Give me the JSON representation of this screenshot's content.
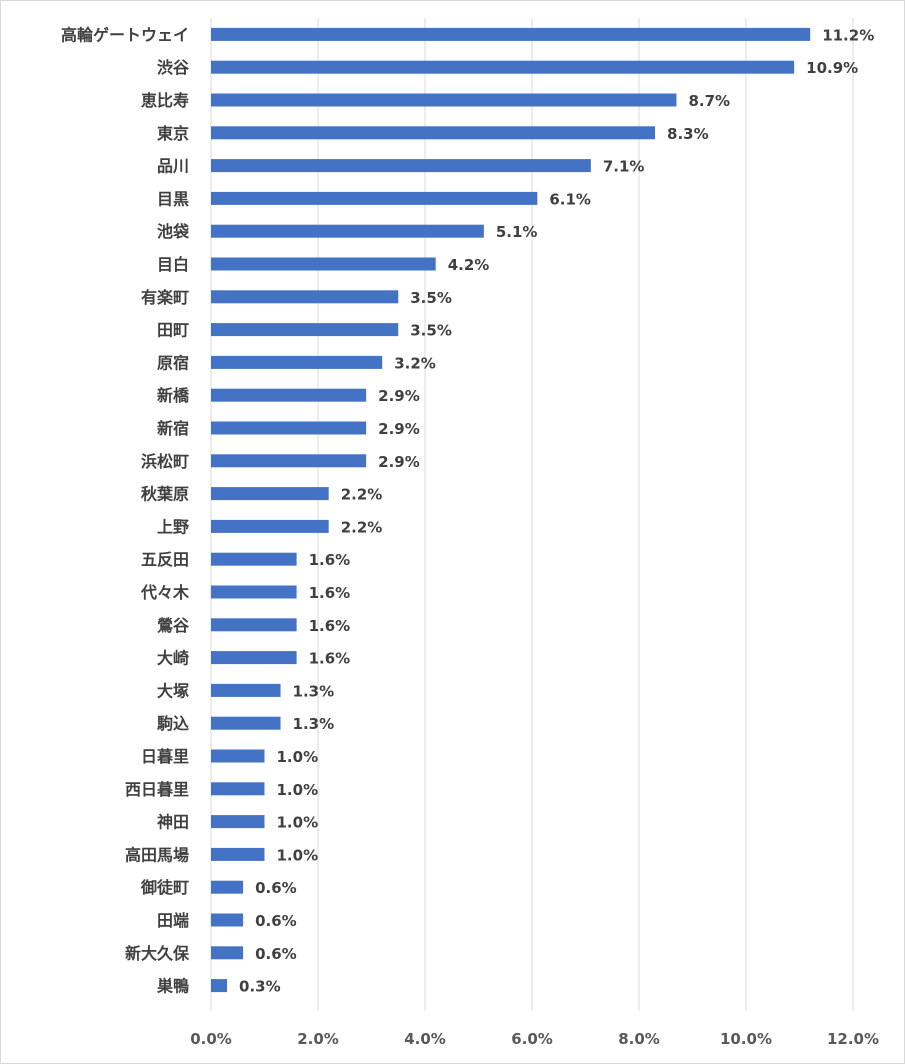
{
  "chart_data": {
    "type": "bar",
    "orientation": "horizontal",
    "title": "",
    "xlabel": "",
    "ylabel": "",
    "categories": [
      "高輪ゲートウェイ",
      "渋谷",
      "恵比寿",
      "東京",
      "品川",
      "目黒",
      "池袋",
      "目白",
      "有楽町",
      "田町",
      "原宿",
      "新橋",
      "新宿",
      "浜松町",
      "秋葉原",
      "上野",
      "五反田",
      "代々木",
      "鶯谷",
      "大崎",
      "大塚",
      "駒込",
      "日暮里",
      "西日暮里",
      "神田",
      "高田馬場",
      "御徒町",
      "田端",
      "新大久保",
      "巣鴨"
    ],
    "values": [
      11.2,
      10.9,
      8.7,
      8.3,
      7.1,
      6.1,
      5.1,
      4.2,
      3.5,
      3.5,
      3.2,
      2.9,
      2.9,
      2.9,
      2.2,
      2.2,
      1.6,
      1.6,
      1.6,
      1.6,
      1.3,
      1.3,
      1.0,
      1.0,
      1.0,
      1.0,
      0.6,
      0.6,
      0.6,
      0.3
    ],
    "data_labels": [
      "11.2%",
      "10.9%",
      "8.7%",
      "8.3%",
      "7.1%",
      "6.1%",
      "5.1%",
      "4.2%",
      "3.5%",
      "3.5%",
      "3.2%",
      "2.9%",
      "2.9%",
      "2.9%",
      "2.2%",
      "2.2%",
      "1.6%",
      "1.6%",
      "1.6%",
      "1.6%",
      "1.3%",
      "1.3%",
      "1.0%",
      "1.0%",
      "1.0%",
      "1.0%",
      "0.6%",
      "0.6%",
      "0.6%",
      "0.3%"
    ],
    "xlim": [
      0,
      12
    ],
    "xticks": [
      0,
      2,
      4,
      6,
      8,
      10,
      12
    ],
    "xtick_labels": [
      "0.0%",
      "2.0%",
      "4.0%",
      "6.0%",
      "8.0%",
      "10.0%",
      "12.0%"
    ],
    "grid": true,
    "legend": "none",
    "bar_color": "#4472c4",
    "grid_color": "#d9d9d9"
  }
}
